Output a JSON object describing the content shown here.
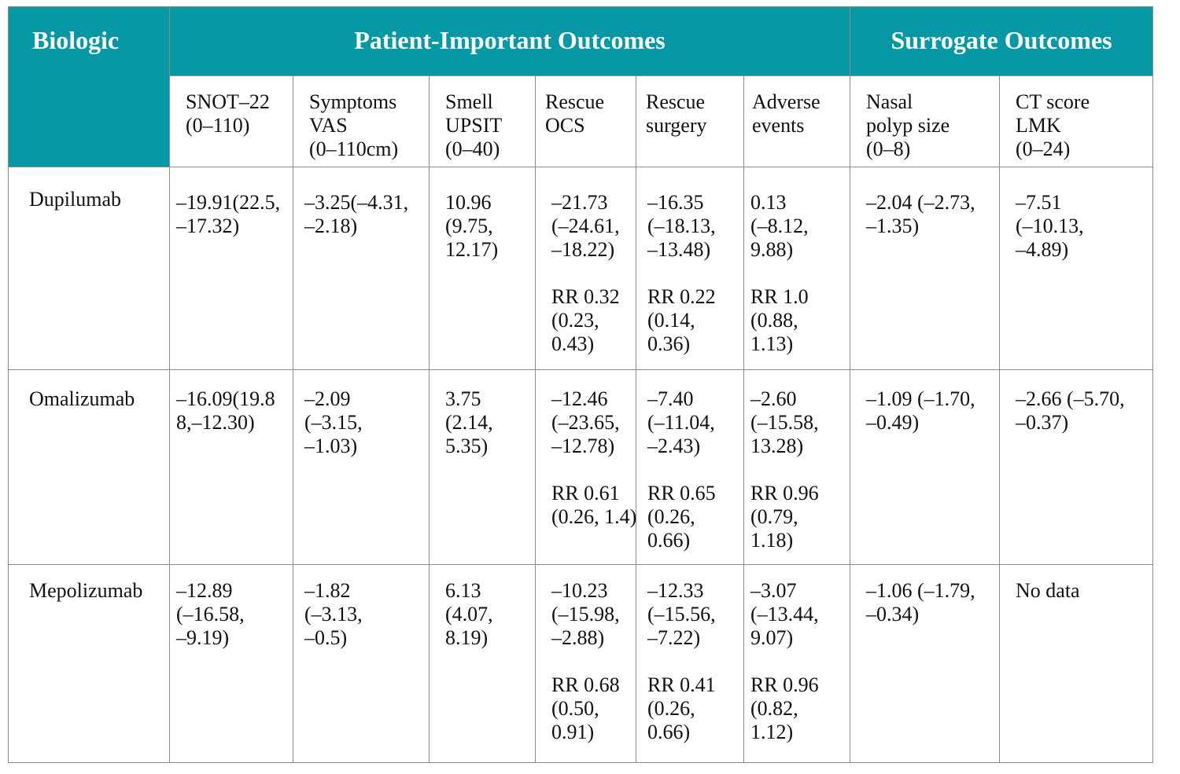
{
  "header": {
    "biologic": "Biologic",
    "patient_important": "Patient-Important Outcomes",
    "surrogate": "Surrogate Outcomes"
  },
  "subheaders": {
    "snot": [
      "SNOT–22",
      "(0–110)"
    ],
    "vas": [
      "Symptoms",
      "VAS",
      "(0–110cm)"
    ],
    "smell": [
      "Smell",
      "UPSIT",
      "(0–40)"
    ],
    "ocs": [
      "Rescue",
      "OCS"
    ],
    "surgery": [
      "Rescue",
      "surgery"
    ],
    "adverse": [
      "Adverse",
      "events"
    ],
    "polyp": [
      "Nasal",
      "polyp size",
      "(0–8)"
    ],
    "ct": [
      "CT score",
      "LMK",
      "(0–24)"
    ]
  },
  "rows": {
    "dupilumab": {
      "name": "Dupilumab",
      "snot": [
        "–19.91(22.5,",
        "–17.32)"
      ],
      "vas": [
        "–3.25(–4.31,",
        "–2.18)"
      ],
      "smell": [
        "10.96",
        "(9.75,",
        "12.17)"
      ],
      "ocs": [
        "–21.73",
        "(–24.61,",
        "–18.22)"
      ],
      "ocs_rr": [
        "RR 0.32",
        "(0.23,",
        "0.43)"
      ],
      "surgery": [
        "–16.35",
        "(–18.13,",
        "–13.48)"
      ],
      "surgery_rr": [
        "RR 0.22",
        "(0.14,",
        "0.36)"
      ],
      "adverse": [
        "0.13",
        "(–8.12,",
        "9.88)"
      ],
      "adverse_rr": [
        "RR 1.0",
        "(0.88,",
        "1.13)"
      ],
      "polyp": [
        "–2.04 (–2.73,",
        "–1.35)"
      ],
      "ct": [
        "–7.51",
        "(–10.13,",
        "–4.89)"
      ]
    },
    "omalizumab": {
      "name": "Omalizumab",
      "snot": [
        "–16.09(19.8",
        "8,–12.30)"
      ],
      "vas": [
        "–2.09",
        "(–3.15,",
        "–1.03)"
      ],
      "smell": [
        "3.75",
        "(2.14,",
        "5.35)"
      ],
      "ocs": [
        "–12.46",
        "(–23.65,",
        "–12.78)"
      ],
      "ocs_rr": [
        "RR 0.61",
        "(0.26, 1.4)"
      ],
      "surgery": [
        "–7.40",
        "(–11.04,",
        "–2.43)"
      ],
      "surgery_rr": [
        "RR 0.65",
        "(0.26,",
        "0.66)"
      ],
      "adverse": [
        "–2.60",
        "(–15.58,",
        "13.28)"
      ],
      "adverse_rr": [
        "RR 0.96",
        "(0.79,",
        "1.18)"
      ],
      "polyp": [
        "–1.09 (–1.70,",
        "–0.49)"
      ],
      "ct": [
        "–2.66 (–5.70,",
        "–0.37)"
      ]
    },
    "mepolizumab": {
      "name": "Mepolizumab",
      "snot": [
        "–12.89",
        "(–16.58,",
        "–9.19)"
      ],
      "vas": [
        "–1.82",
        "(–3.13,",
        "–0.5)"
      ],
      "smell": [
        "6.13",
        "(4.07,",
        "8.19)"
      ],
      "ocs": [
        "–10.23",
        "(–15.98,",
        "–2.88)"
      ],
      "ocs_rr": [
        "RR 0.68",
        "(0.50,",
        "0.91)"
      ],
      "surgery": [
        "–12.33",
        "(–15.56,",
        "–7.22)"
      ],
      "surgery_rr": [
        "RR 0.41",
        "(0.26,",
        "0.66)"
      ],
      "adverse": [
        "–3.07",
        "(–13.44,",
        "9.07)"
      ],
      "adverse_rr": [
        "RR 0.96",
        "(0.82,",
        "1.12)"
      ],
      "polyp": [
        "–1.06 (–1.79,",
        "–0.34)"
      ],
      "ct": [
        "No data"
      ]
    }
  }
}
